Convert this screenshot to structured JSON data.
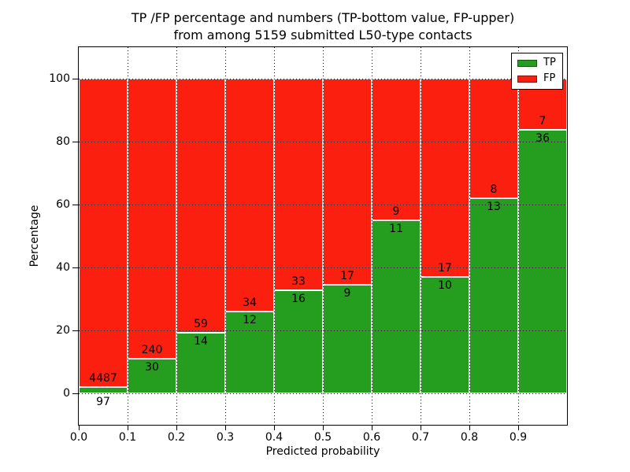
{
  "title": {
    "line1": "TP /FP percentage and numbers (TP-bottom value, FP-upper)",
    "line2": "from among 5159 submitted L50-type contacts"
  },
  "axes": {
    "xlabel": "Predicted probability",
    "ylabel": "Percentage",
    "x_tick_labels": [
      "0.0",
      "0.1",
      "0.2",
      "0.3",
      "0.4",
      "0.5",
      "0.6",
      "0.7",
      "0.8",
      "0.9"
    ],
    "x_tick_values": [
      0.0,
      0.1,
      0.2,
      0.3,
      0.4,
      0.5,
      0.6,
      0.7,
      0.8,
      0.9
    ],
    "y_tick_labels": [
      "0",
      "20",
      "40",
      "60",
      "80",
      "100"
    ],
    "y_tick_values": [
      0,
      20,
      40,
      60,
      80,
      100
    ]
  },
  "legend": {
    "items": [
      {
        "label": "TP",
        "color": "#259e1f"
      },
      {
        "label": "FP",
        "color": "#fb1f10"
      }
    ],
    "position": "upper right"
  },
  "colors": {
    "tp": "#259e1f",
    "fp": "#fb1f10",
    "grid": "#000000",
    "bar_edge": "#ffffff",
    "spine": "#000000",
    "background": "#ffffff"
  },
  "chart_data": {
    "type": "bar",
    "stacked": true,
    "normalized_to": 100,
    "title": "TP /FP percentage and numbers (TP-bottom value, FP-upper) from among 5159 submitted L50-type contacts",
    "xlabel": "Predicted probability",
    "ylabel": "Percentage",
    "total_contacts": 5159,
    "categories": [
      "0.0-0.1",
      "0.1-0.2",
      "0.2-0.3",
      "0.3-0.4",
      "0.4-0.5",
      "0.5-0.6",
      "0.6-0.7",
      "0.7-0.8",
      "0.8-0.9",
      "0.9-1.0"
    ],
    "bin_edges": [
      0.0,
      0.1,
      0.2,
      0.3,
      0.4,
      0.5,
      0.6,
      0.7,
      0.8,
      0.9,
      1.0
    ],
    "series": [
      {
        "name": "TP",
        "counts": [
          97,
          30,
          14,
          12,
          16,
          9,
          11,
          10,
          13,
          36
        ]
      },
      {
        "name": "FP",
        "counts": [
          4487,
          240,
          59,
          34,
          33,
          17,
          9,
          17,
          8,
          7
        ]
      }
    ],
    "tp_percent": [
      2.1,
      11.1,
      19.2,
      26.1,
      32.7,
      34.6,
      55.0,
      37.0,
      61.9,
      83.7
    ],
    "xlim": [
      0,
      1
    ],
    "ylim": [
      -10,
      110
    ],
    "grid": true,
    "grid_style": "dotted",
    "legend_position": "upper right"
  }
}
